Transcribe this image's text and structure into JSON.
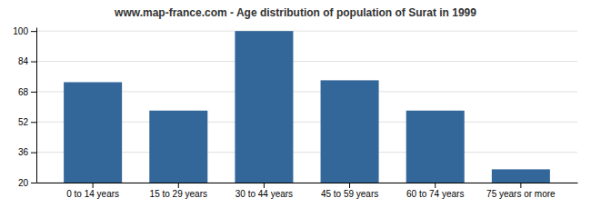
{
  "chart_data": {
    "type": "bar",
    "title": "www.map-france.com - Age distribution of population of Surat in 1999",
    "categories": [
      "0 to 14 years",
      "15 to 29 years",
      "30 to 44 years",
      "45 to 59 years",
      "60 to 74 years",
      "75 years or more"
    ],
    "values": [
      73,
      58,
      100,
      74,
      58,
      27
    ],
    "color": "#336699",
    "ylim": [
      20,
      102
    ],
    "yticks": [
      20,
      36,
      52,
      68,
      84,
      100
    ],
    "grid": true
  }
}
